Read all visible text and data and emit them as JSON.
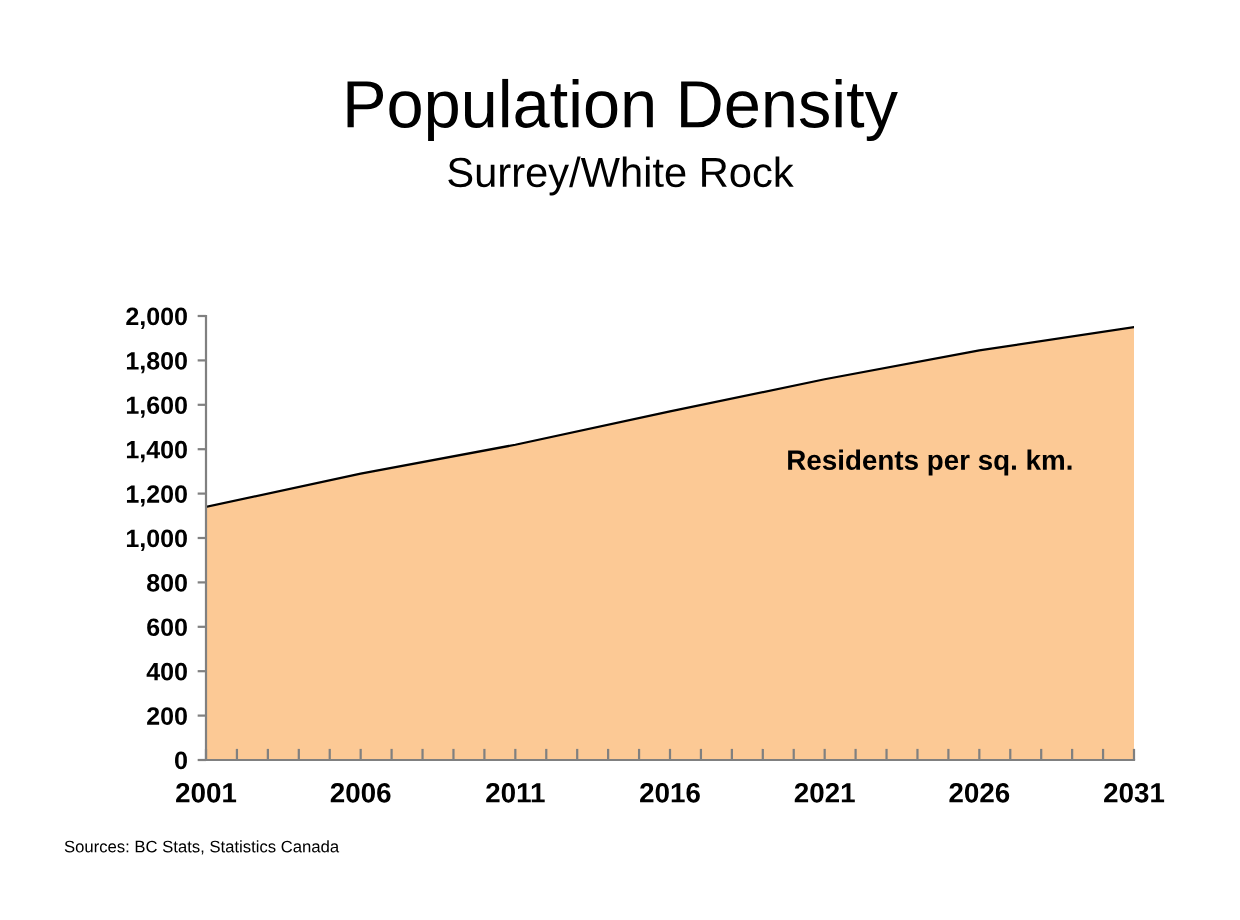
{
  "chart_data": {
    "type": "area",
    "title": "Population Density",
    "subtitle": "Surrey/White Rock",
    "x": [
      2001,
      2006,
      2011,
      2016,
      2021,
      2026,
      2031
    ],
    "series": [
      {
        "color": "#fcc995",
        "values": [
          1140,
          1290,
          1420,
          1570,
          1715,
          1845,
          1950
        ]
      }
    ],
    "xlim": [
      2001,
      2031
    ],
    "xticks": [
      2001,
      {
        "value": 2002,
        "label": null
      },
      {
        "value": 2003,
        "label": null
      },
      {
        "value": 2004,
        "label": null
      },
      {
        "value": 2005,
        "label": null
      },
      2006,
      {
        "value": 2007,
        "label": null
      },
      {
        "value": 2008,
        "label": null
      },
      {
        "value": 2009,
        "label": null
      },
      {
        "value": 2010,
        "label": null
      },
      2011,
      {
        "value": 2012,
        "label": null
      },
      {
        "value": 2013,
        "label": null
      },
      {
        "value": 2014,
        "label": null
      },
      {
        "value": 2015,
        "label": null
      },
      2016,
      {
        "value": 2017,
        "label": null
      },
      {
        "value": 2018,
        "label": null
      },
      {
        "value": 2019,
        "label": null
      },
      {
        "value": 2020,
        "label": null
      },
      2021,
      {
        "value": 2022,
        "label": null
      },
      {
        "value": 2023,
        "label": null
      },
      {
        "value": 2024,
        "label": null
      },
      {
        "value": 2025,
        "label": null
      },
      2026,
      {
        "value": 2027,
        "label": null
      },
      {
        "value": 2028,
        "label": null
      },
      {
        "value": 2029,
        "label": null
      },
      {
        "value": 2030,
        "label": null
      },
      2031
    ],
    "ylim": [
      0,
      2000
    ],
    "yticks": [
      {
        "value": 0,
        "label": "0"
      },
      {
        "value": 200,
        "label": "200"
      },
      {
        "value": 400,
        "label": "400"
      },
      {
        "value": 600,
        "label": "600"
      },
      {
        "value": 800,
        "label": "800"
      },
      {
        "value": 1000,
        "label": "1,000"
      },
      {
        "value": 1200,
        "label": "1,200"
      },
      {
        "value": 1400,
        "label": "1,400"
      },
      {
        "value": 1600,
        "label": "1,600"
      },
      {
        "value": 1800,
        "label": "1,800"
      },
      {
        "value": 2000,
        "label": "2,000"
      }
    ],
    "grid": false,
    "annotations": [
      "Residents per sq. km.",
      "Sources: BC Stats, Statistics Canada"
    ]
  }
}
